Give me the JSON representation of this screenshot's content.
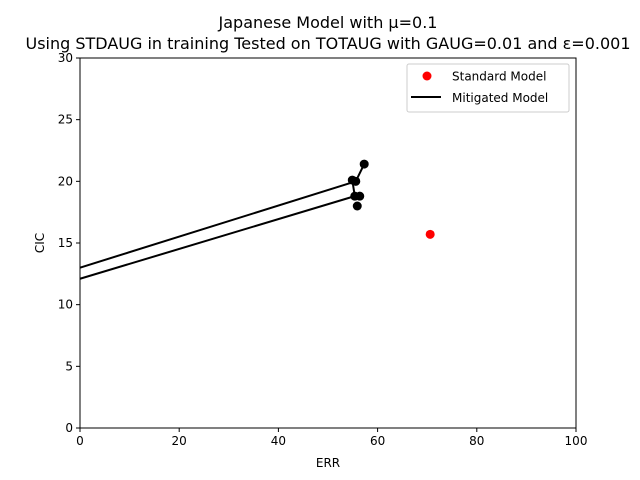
{
  "chart_data": {
    "type": "scatter",
    "title": "Japanese Model with μ=0.1",
    "subtitle": "Using STDAUG in training Tested on TOTAUG with GAUG=0.01 and ε=0.001",
    "xlabel": "ERR",
    "ylabel": "CIC",
    "xlim": [
      0,
      100
    ],
    "ylim": [
      0,
      30
    ],
    "xticks": [
      0,
      20,
      40,
      60,
      80,
      100
    ],
    "yticks": [
      0,
      5,
      10,
      15,
      20,
      25,
      30
    ],
    "grid": false,
    "legend_position": "top-right",
    "series": [
      {
        "name": "Standard Model",
        "kind": "points",
        "color": "#ff0000",
        "points": [
          [
            70.6,
            15.7
          ]
        ]
      },
      {
        "name": "Mitigated Model",
        "kind": "line",
        "color": "#000000",
        "points": [
          [
            57.3,
            21.4
          ],
          [
            55.6,
            20.0
          ],
          [
            54.9,
            20.1
          ],
          [
            55.4,
            18.8
          ],
          [
            56.4,
            18.8
          ],
          [
            55.9,
            18.0
          ]
        ],
        "lines": [
          [
            [
              57.3,
              21.4
            ],
            [
              55.6,
              20.0
            ],
            [
              0,
              13.0
            ]
          ],
          [
            [
              54.9,
              20.1
            ],
            [
              55.4,
              18.8
            ],
            [
              0,
              12.1
            ]
          ]
        ]
      }
    ]
  }
}
